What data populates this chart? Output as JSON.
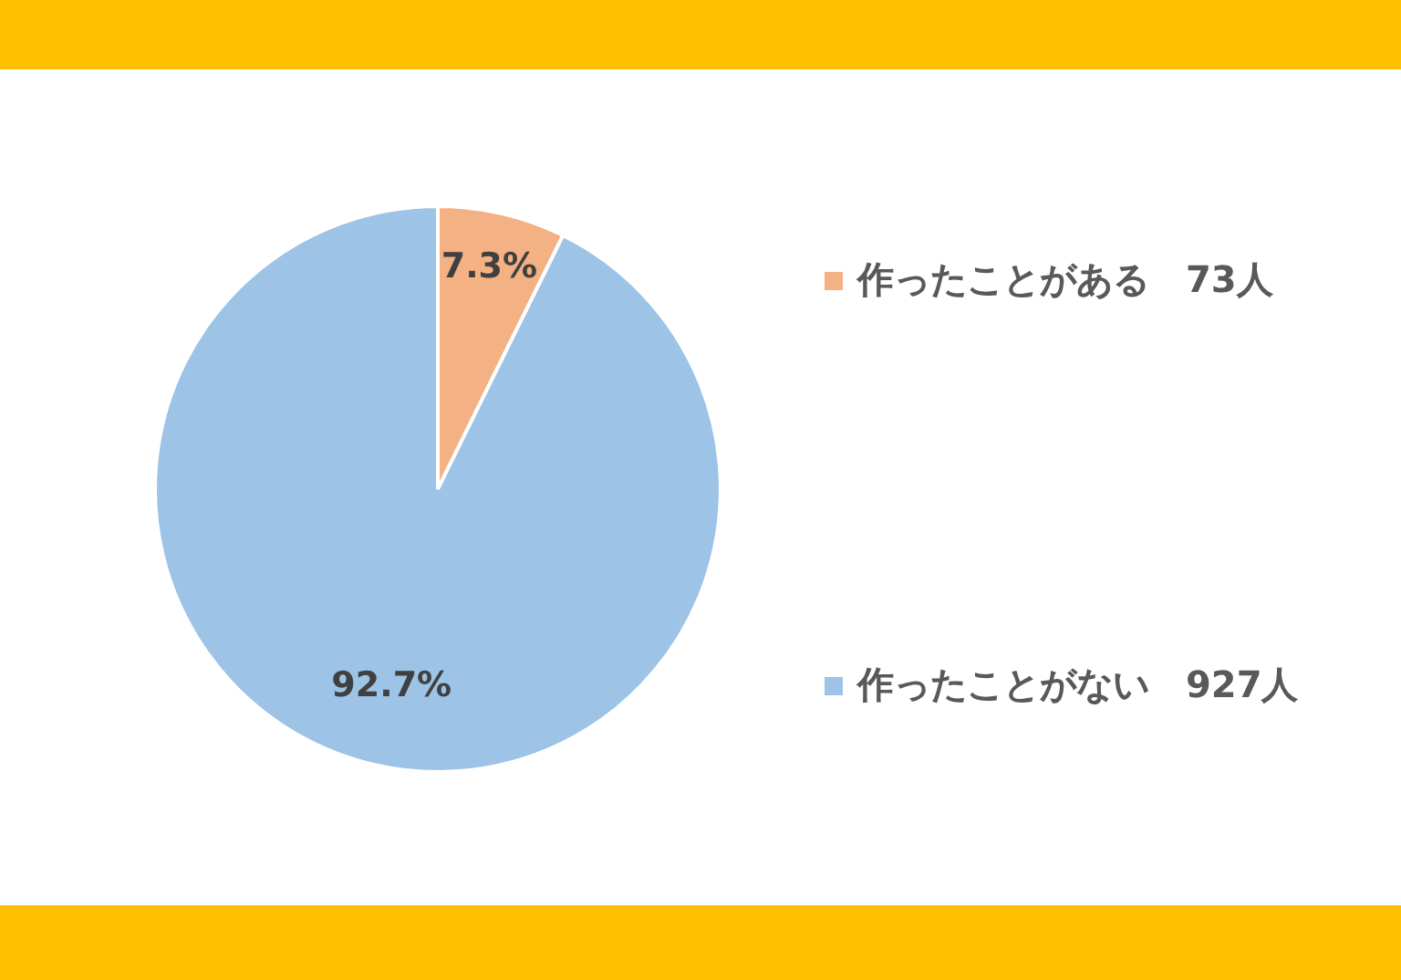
{
  "chart_data": {
    "type": "pie",
    "categories": [
      "作ったことがある　73人",
      "作ったことがない　927人"
    ],
    "values": [
      7.3,
      92.7
    ],
    "value_labels": [
      "7.3%",
      "92.7%"
    ],
    "colors": [
      "#f4b183",
      "#9dc3e6"
    ],
    "legend": "right"
  }
}
